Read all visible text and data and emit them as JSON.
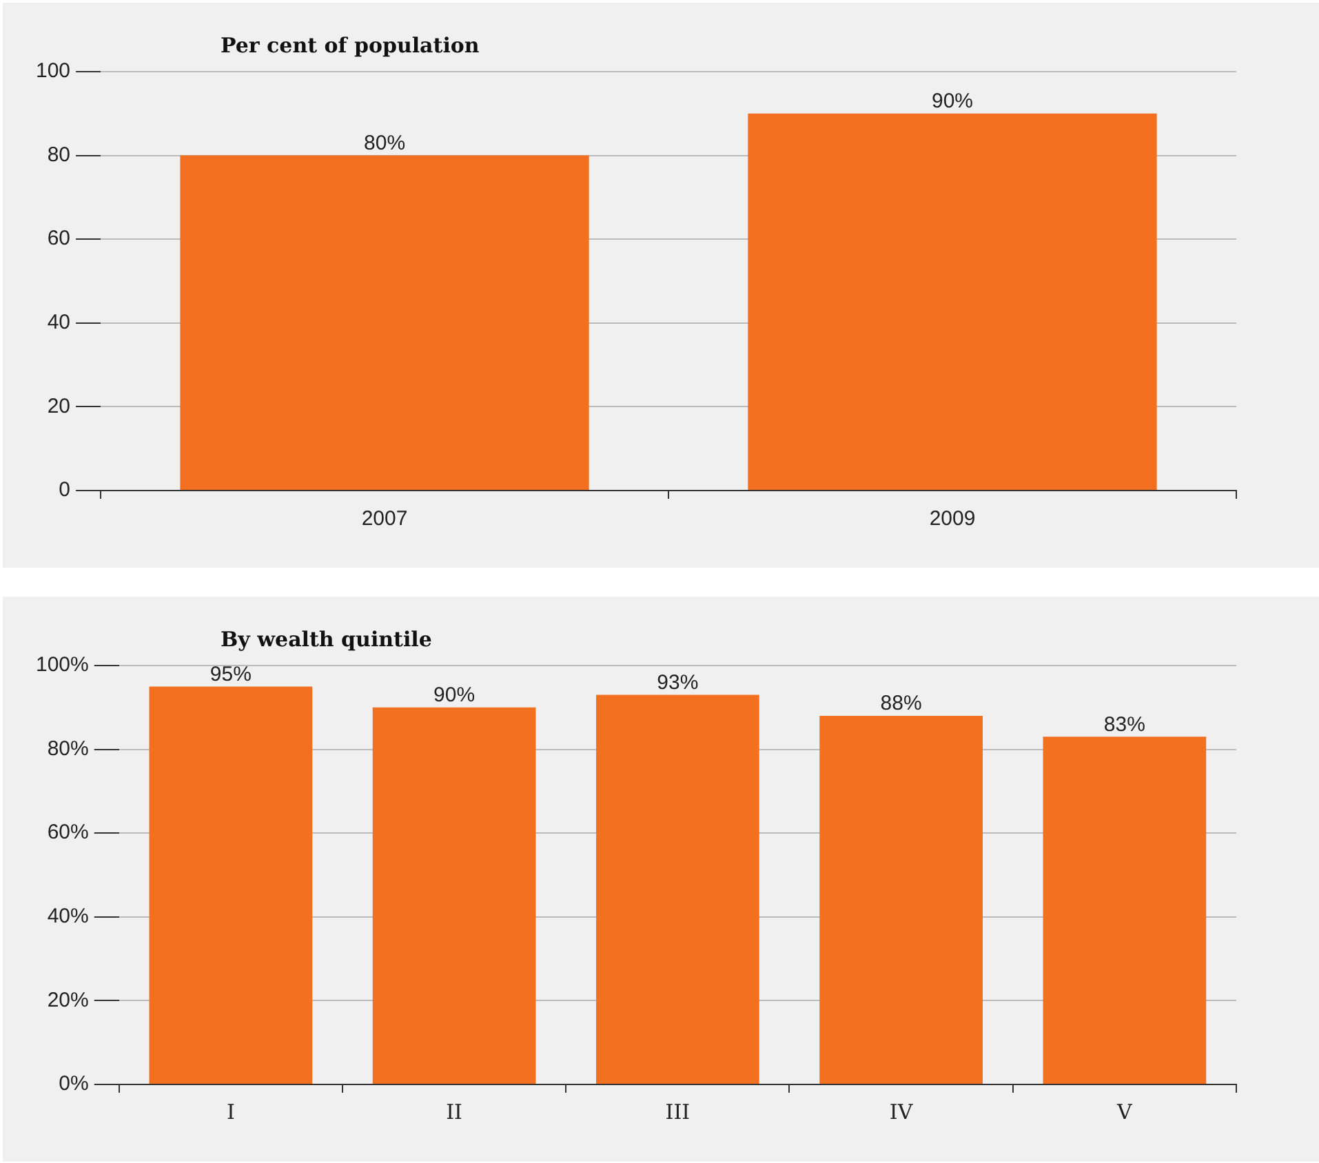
{
  "chart_data": [
    {
      "type": "bar",
      "title": "Per cent of population",
      "categories": [
        "2007",
        "2009"
      ],
      "values": [
        80,
        90
      ],
      "value_labels": [
        "80%",
        "90%"
      ],
      "color": "#f37021",
      "ylim": [
        0,
        100
      ],
      "yticks": [
        0,
        20,
        40,
        60,
        80,
        100
      ],
      "grid": "y",
      "legend": false
    },
    {
      "type": "bar",
      "title": "By wealth quintile",
      "categories": [
        "I",
        "II",
        "III",
        "IV",
        "V"
      ],
      "values": [
        95,
        90,
        93,
        88,
        83
      ],
      "value_labels": [
        "95%",
        "90%",
        "93%",
        "88%",
        "83%"
      ],
      "color": "#f37021",
      "ylim": [
        0,
        100
      ],
      "yticks": [
        {
          "value": 0,
          "label": "0%"
        },
        {
          "value": 20,
          "label": "20%"
        },
        {
          "value": 40,
          "label": "40%"
        },
        {
          "value": 60,
          "label": "60%"
        },
        {
          "value": 80,
          "label": "80%"
        },
        {
          "value": 100,
          "label": "100%"
        }
      ],
      "grid": "y",
      "legend": false
    }
  ]
}
